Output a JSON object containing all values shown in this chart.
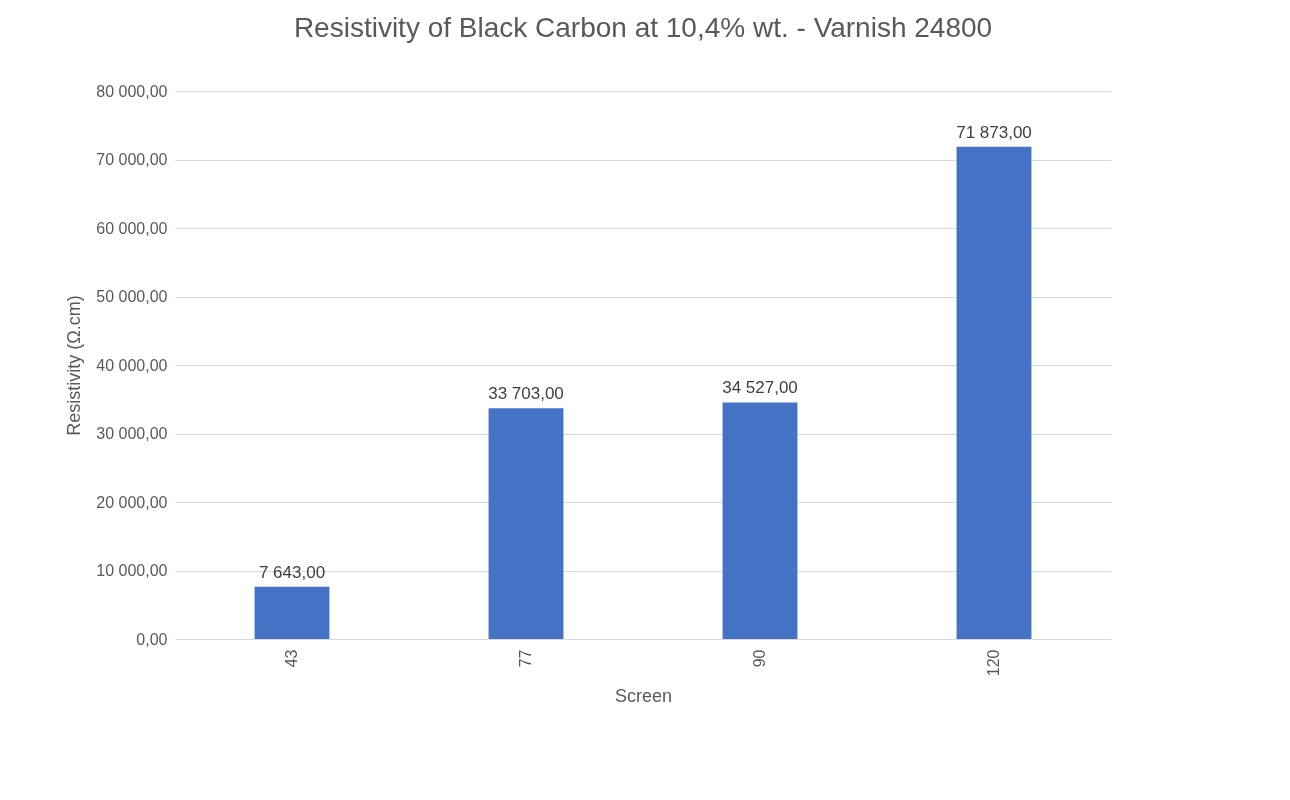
{
  "chart_data": {
    "type": "bar",
    "title": "Resistivity of Black Carbon at 10,4% wt. - Varnish 24800",
    "xlabel": "Screen",
    "ylabel": "Resistivity (Ω.cm)",
    "categories": [
      "43",
      "77",
      "90",
      "120"
    ],
    "series": [
      {
        "color": "#4472c4",
        "values": [
          7643,
          33703,
          34527,
          71873
        ],
        "value_labels": [
          "7 643,00",
          "33 703,00",
          "34 527,00",
          "71 873,00"
        ]
      }
    ],
    "ylim": [
      0,
      80000
    ],
    "yticks": [
      {
        "value": 0,
        "label": "0,00"
      },
      {
        "value": 10000,
        "label": "10 000,00"
      },
      {
        "value": 20000,
        "label": "20 000,00"
      },
      {
        "value": 30000,
        "label": "30 000,00"
      },
      {
        "value": 40000,
        "label": "40 000,00"
      },
      {
        "value": 50000,
        "label": "50 000,00"
      },
      {
        "value": 60000,
        "label": "60 000,00"
      },
      {
        "value": 70000,
        "label": "70 000,00"
      },
      {
        "value": 80000,
        "label": "80 000,00"
      }
    ],
    "grid": "y",
    "legend": false
  }
}
